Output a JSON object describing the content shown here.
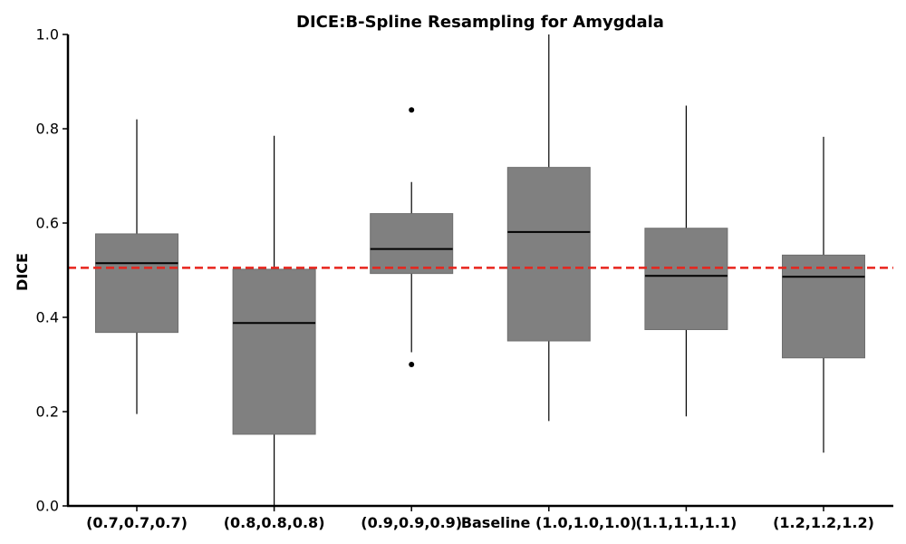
{
  "chart_data": {
    "type": "box",
    "title": "DICE:B-Spline Resampling for Amygdala",
    "xlabel": "",
    "ylabel": "DICE",
    "ylim": [
      0.0,
      1.0
    ],
    "yticks": [
      0.0,
      0.2,
      0.4,
      0.6,
      0.8,
      1.0
    ],
    "ytick_labels": [
      "0.0",
      "0.2",
      "0.4",
      "0.6",
      "0.8",
      "1.0"
    ],
    "categories": [
      "(0.7,0.7,0.7)",
      "(0.8,0.8,0.8)",
      "(0.9,0.9,0.9)",
      "Baseline (1.0,1.0,1.0)",
      "(1.1,1.1,1.1)",
      "(1.2,1.2,1.2)"
    ],
    "boxes": [
      {
        "whisker_low": 0.195,
        "q1": 0.368,
        "median": 0.515,
        "q3": 0.577,
        "whisker_high": 0.82,
        "outliers": []
      },
      {
        "whisker_low": 0.0,
        "q1": 0.152,
        "median": 0.388,
        "q3": 0.502,
        "whisker_high": 0.785,
        "outliers": []
      },
      {
        "whisker_low": 0.326,
        "q1": 0.493,
        "median": 0.545,
        "q3": 0.62,
        "whisker_high": 0.687,
        "outliers": [
          0.84,
          0.3
        ]
      },
      {
        "whisker_low": 0.18,
        "q1": 0.35,
        "median": 0.581,
        "q3": 0.718,
        "whisker_high": 1.0,
        "outliers": []
      },
      {
        "whisker_low": 0.19,
        "q1": 0.374,
        "median": 0.488,
        "q3": 0.589,
        "whisker_high": 0.849,
        "outliers": []
      },
      {
        "whisker_low": 0.113,
        "q1": 0.314,
        "median": 0.486,
        "q3": 0.532,
        "whisker_high": 0.783,
        "outliers": []
      }
    ],
    "reference_line": {
      "value": 0.505,
      "style": "dashed",
      "color": "#e8241c"
    },
    "box_color": "#808080",
    "median_color": "#000000",
    "grid": false,
    "legend": "none"
  }
}
